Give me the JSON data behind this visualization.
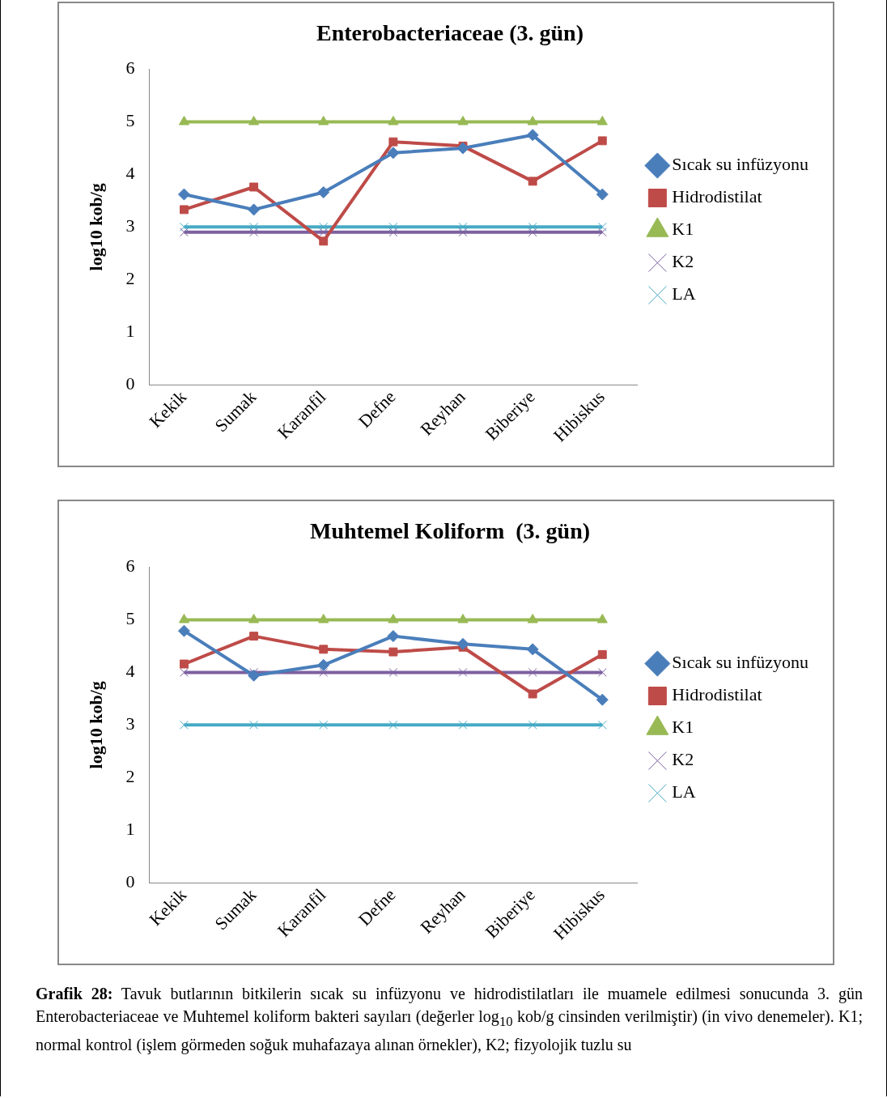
{
  "chart_data": [
    {
      "type": "line",
      "title": "Enterobacteriaceae (3. gün)",
      "ylabel": "log10 kob/g",
      "categories": [
        "Kekik",
        "Sumak",
        "Karanfil",
        "Defne",
        "Reyhan",
        "Biberiye",
        "Hibiskus"
      ],
      "ylim": [
        0,
        6
      ],
      "yticks": [
        0,
        1,
        2,
        3,
        4,
        5,
        6
      ],
      "grid": false,
      "legend": "right",
      "series": [
        {
          "name": "Sıcak su infüzyonu",
          "color": "#4a7ebb",
          "marker": "diamond",
          "values": [
            3.62,
            3.33,
            3.66,
            4.41,
            4.5,
            4.75,
            3.62
          ]
        },
        {
          "name": "Hidrodistilat",
          "color": "#be4b48",
          "marker": "square",
          "values": [
            3.33,
            3.76,
            2.73,
            4.62,
            4.54,
            3.87,
            4.64
          ]
        },
        {
          "name": "K1",
          "color": "#98b954",
          "marker": "triangle",
          "values": [
            5,
            5,
            5,
            5,
            5,
            5,
            5
          ]
        },
        {
          "name": "K2",
          "color": "#7d60a0",
          "marker": "cross",
          "values": [
            2.9,
            2.9,
            2.9,
            2.9,
            2.9,
            2.9,
            2.9
          ]
        },
        {
          "name": "LA",
          "color": "#46aac5",
          "marker": "cross",
          "values": [
            3,
            3,
            3,
            3,
            3,
            3,
            3
          ]
        }
      ]
    },
    {
      "type": "line",
      "title": "Muhtemel Koliform  (3. gün)",
      "ylabel": "log10 kob/g",
      "categories": [
        "Kekik",
        "Sumak",
        "Karanfil",
        "Defne",
        "Reyhan",
        "Biberiye",
        "Hibiskus"
      ],
      "ylim": [
        0,
        6
      ],
      "yticks": [
        0,
        1,
        2,
        3,
        4,
        5,
        6
      ],
      "grid": false,
      "legend": "right",
      "series": [
        {
          "name": "Sıcak su infüzyonu",
          "color": "#4a7ebb",
          "marker": "diamond",
          "values": [
            4.79,
            3.94,
            4.14,
            4.69,
            4.54,
            4.44,
            3.48
          ]
        },
        {
          "name": "Hidrodistilat",
          "color": "#be4b48",
          "marker": "square",
          "values": [
            4.16,
            4.69,
            4.44,
            4.39,
            4.48,
            3.59,
            4.34
          ]
        },
        {
          "name": "K1",
          "color": "#98b954",
          "marker": "triangle",
          "values": [
            5,
            5,
            5,
            5,
            5,
            5,
            5
          ]
        },
        {
          "name": "K2",
          "color": "#7d60a0",
          "marker": "cross",
          "values": [
            4,
            4,
            4,
            4,
            4,
            4,
            4
          ]
        },
        {
          "name": "LA",
          "color": "#46aac5",
          "marker": "cross",
          "values": [
            3,
            3,
            3,
            3,
            3,
            3,
            3
          ]
        }
      ],
      "annotations": [
        "Grafik 28: Tavuk butlarının bitkilerin sıcak su infüzyonu ve hidrodistilatları ile muamele edilmesi sonucunda 3. gün Enterobacteriaceae ve Muhtemel koliform bakteri sayıları (değerler log$_{10}$ kob/g cinsinden verilmiştir) (in vivo denemeler). K1; normal kontrol (işlem görmeden soğuk muhafazaya alınan örnekler), K2; fizyolojik tuzlu su"
      ]
    }
  ]
}
